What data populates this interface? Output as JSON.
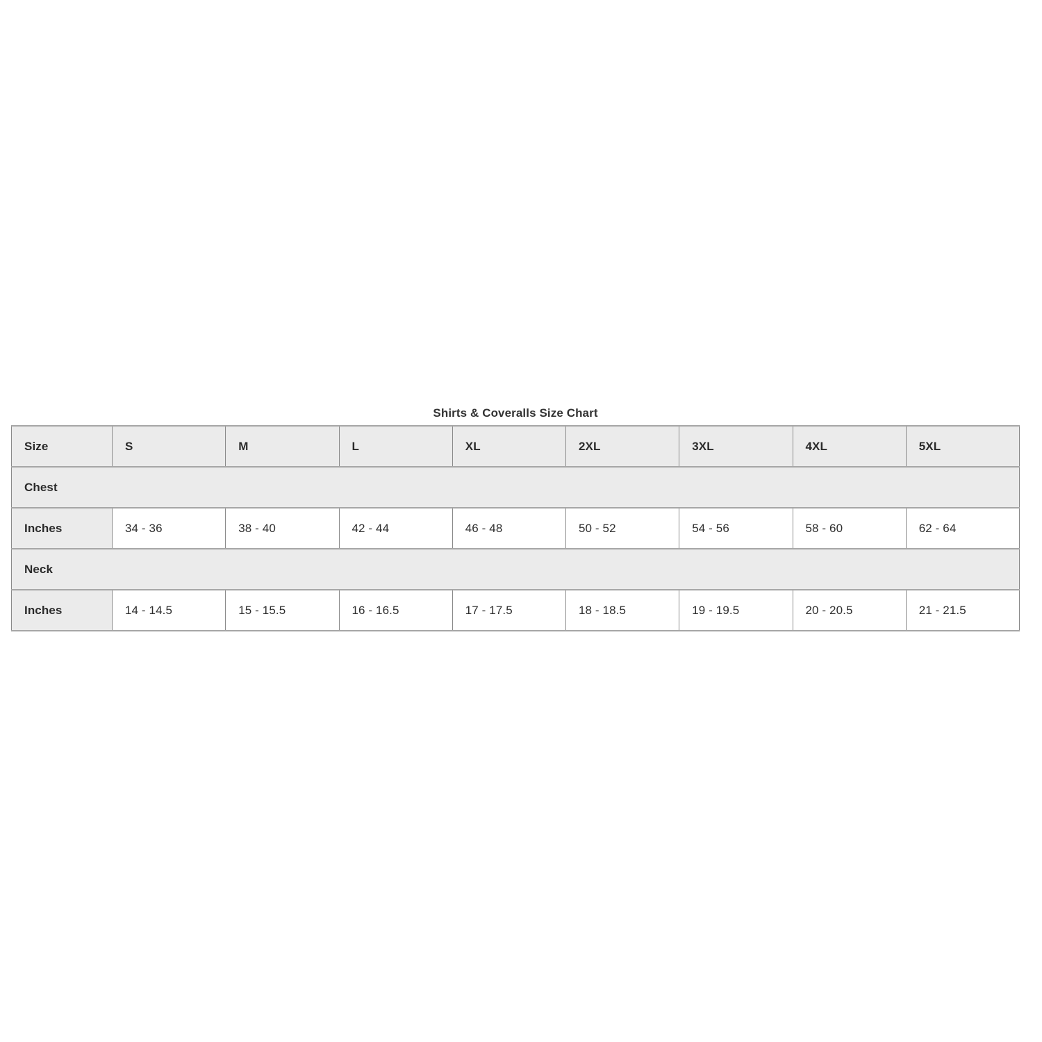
{
  "colors": {
    "page_background": "#ffffff",
    "shaded_cell_background": "#ebebeb",
    "horizontal_border": "#a6a6a6",
    "vertical_border": "#8a8a8a",
    "text": "#2e2e2e"
  },
  "chart_data": {
    "type": "table",
    "title": "Shirts & Coveralls Size Chart",
    "columns": [
      "Size",
      "S",
      "M",
      "L",
      "XL",
      "2XL",
      "3XL",
      "4XL",
      "5XL"
    ],
    "rows": [
      {
        "kind": "section",
        "label": "Chest"
      },
      {
        "kind": "data",
        "label": "Inches",
        "values": [
          "34 - 36",
          "38 - 40",
          "42 - 44",
          "46 - 48",
          "50 - 52",
          "54 - 56",
          "58 - 60",
          "62 - 64"
        ]
      },
      {
        "kind": "section",
        "label": "Neck"
      },
      {
        "kind": "data",
        "label": "Inches",
        "values": [
          "14 - 14.5",
          "15 - 15.5",
          "16 - 16.5",
          "17 - 17.5",
          "18 - 18.5",
          "19 - 19.5",
          "20 - 20.5",
          "21 - 21.5"
        ]
      }
    ]
  }
}
